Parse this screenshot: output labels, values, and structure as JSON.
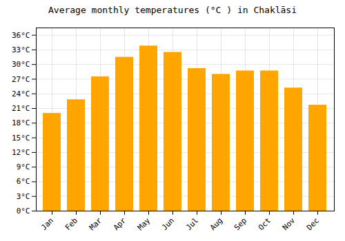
{
  "chart_data": {
    "type": "bar",
    "title": "Average monthly temperatures (°C ) in Chaklāsi",
    "categories": [
      "Jan",
      "Feb",
      "Mar",
      "Apr",
      "May",
      "Jun",
      "Jul",
      "Aug",
      "Sep",
      "Oct",
      "Nov",
      "Dec"
    ],
    "values": [
      20.0,
      22.8,
      27.5,
      31.5,
      33.8,
      32.5,
      29.2,
      28.0,
      28.7,
      28.7,
      25.2,
      21.7
    ],
    "color": "#FFA500",
    "ylim": [
      0,
      37.5
    ],
    "yticks": [
      {
        "value": 0,
        "label": "0°C"
      },
      {
        "value": 3,
        "label": "3°C"
      },
      {
        "value": 6,
        "label": "6°C"
      },
      {
        "value": 9,
        "label": "9°C"
      },
      {
        "value": 12,
        "label": "12°C"
      },
      {
        "value": 15,
        "label": "15°C"
      },
      {
        "value": 18,
        "label": "18°C"
      },
      {
        "value": 21,
        "label": "21°C"
      },
      {
        "value": 24,
        "label": "24°C"
      },
      {
        "value": 27,
        "label": "27°C"
      },
      {
        "value": 30,
        "label": "30°C"
      },
      {
        "value": 33,
        "label": "33°C"
      },
      {
        "value": 36,
        "label": "36°C"
      }
    ],
    "grid": true
  }
}
